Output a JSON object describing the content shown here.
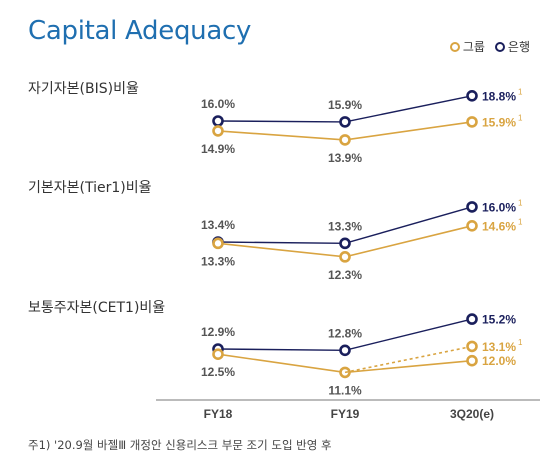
{
  "title": "Capital Adequacy",
  "legend": {
    "group": {
      "label": "그룹",
      "color": "#d9a441"
    },
    "bank": {
      "label": "은행",
      "color": "#1a1f5c"
    }
  },
  "footnote": "주1) '20.9월 바젤Ⅲ 개정안 신용리스크 부문 조기 도입 반영 후",
  "chart_data": {
    "type": "line",
    "categories": [
      "FY18",
      "FY19",
      "3Q20(e)"
    ],
    "charts": [
      {
        "title": "자기자본(BIS)비율",
        "series": [
          {
            "name": "은행",
            "values": [
              16.0,
              15.9,
              18.8
            ],
            "labels": [
              "16.0%",
              "15.9%",
              "18.8%"
            ],
            "last_note": "1"
          },
          {
            "name": "그룹",
            "values": [
              14.9,
              13.9,
              15.9
            ],
            "labels": [
              "14.9%",
              "13.9%",
              "15.9%"
            ],
            "last_note": "1"
          }
        ]
      },
      {
        "title": "기본자본(Tier1)비율",
        "series": [
          {
            "name": "은행",
            "values": [
              13.4,
              13.3,
              16.0
            ],
            "labels": [
              "13.4%",
              "13.3%",
              "16.0%"
            ],
            "last_note": "1"
          },
          {
            "name": "그룹",
            "values": [
              13.3,
              12.3,
              14.6
            ],
            "labels": [
              "13.3%",
              "12.3%",
              "14.6%"
            ],
            "last_note": "1"
          }
        ]
      },
      {
        "title": "보통주자본(CET1)비율",
        "series": [
          {
            "name": "은행",
            "values": [
              12.9,
              12.8,
              15.2
            ],
            "labels": [
              "12.9%",
              "12.8%",
              "15.2%"
            ],
            "last_note": ""
          },
          {
            "name": "그룹",
            "values": [
              12.5,
              11.1,
              12.0
            ],
            "labels": [
              "12.5%",
              "11.1%",
              "12.0%"
            ],
            "last_note": ""
          },
          {
            "name": "그룹 (주1)",
            "values": [
              null,
              11.1,
              13.1
            ],
            "labels": [
              "",
              "",
              "13.1%"
            ],
            "last_note": "1",
            "dashed": true
          }
        ]
      }
    ]
  }
}
